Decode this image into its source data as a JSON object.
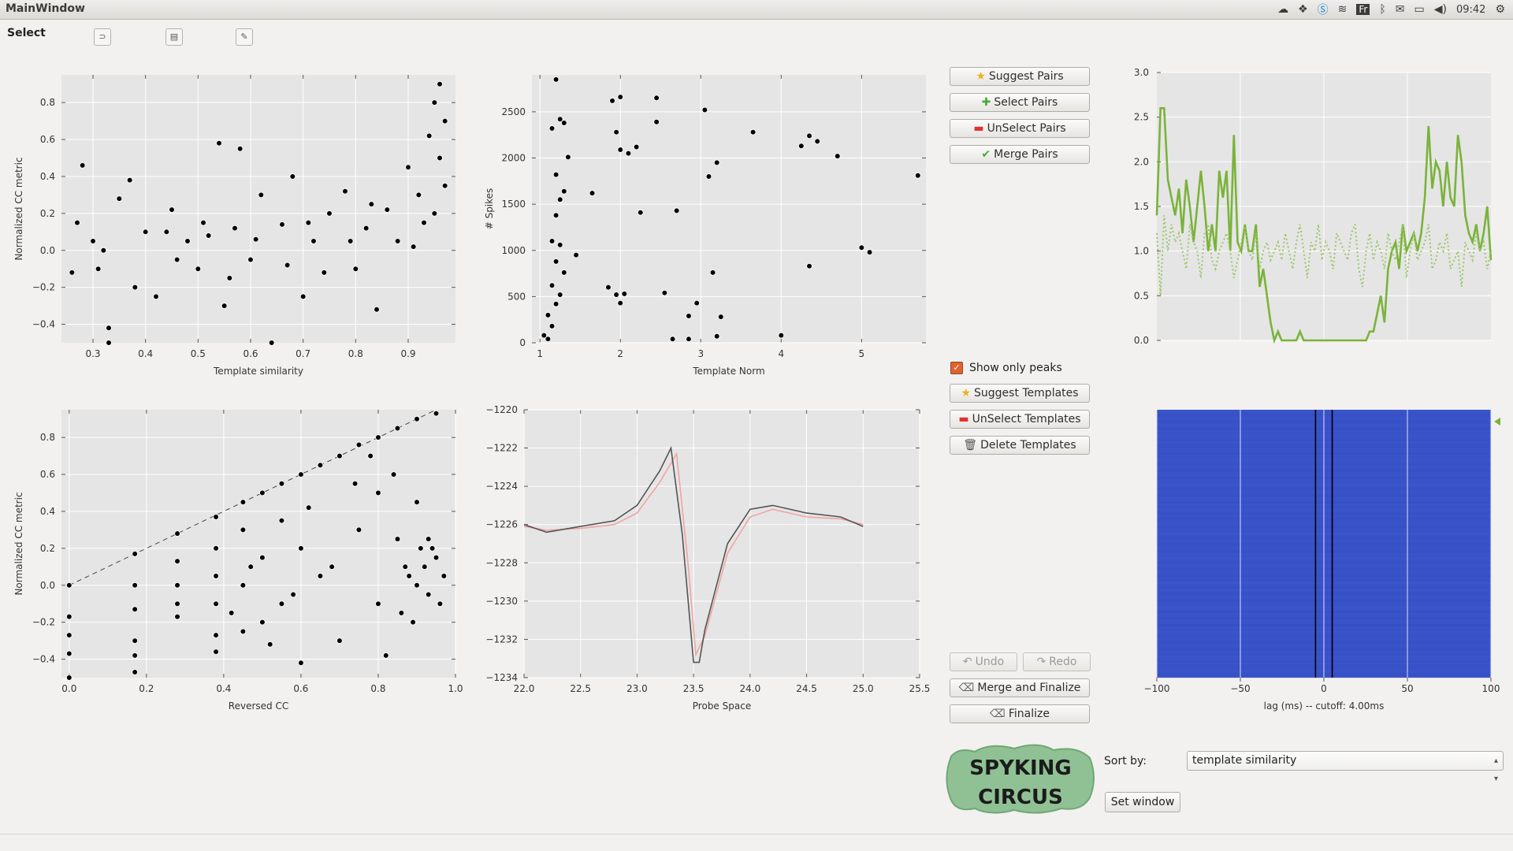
{
  "window": {
    "title": "MainWindow",
    "clock": "09:42",
    "tray_icons": [
      "cloud-icon",
      "dropbox-icon",
      "skype-icon",
      "wifi-icon",
      "keyboard-layout-icon",
      "bluetooth-icon",
      "mail-icon",
      "battery-icon",
      "volume-icon",
      "gear-icon"
    ],
    "keyboard_layout": "Fr"
  },
  "toolbar": {
    "select_label": "Select",
    "tools": [
      "lasso-icon",
      "rectangle-icon",
      "pencil-icon"
    ]
  },
  "buttons": {
    "suggest_pairs": "Suggest Pairs",
    "select_pairs": "Select Pairs",
    "unselect_pairs": "UnSelect Pairs",
    "merge_pairs": "Merge Pairs",
    "show_only_peaks": "Show only peaks",
    "suggest_templates": "Suggest Templates",
    "unselect_templates": "UnSelect Templates",
    "delete_templates": "Delete Templates",
    "undo": "Undo",
    "redo": "Redo",
    "merge_and_finalize": "Merge and Finalize",
    "finalize": "Finalize",
    "set_window": "Set window"
  },
  "sort": {
    "label": "Sort by:",
    "value": "template similarity"
  },
  "logo": {
    "line1": "SPYKING",
    "line2": "CIRCUS"
  },
  "colors": {
    "plot_bg": "#e5e5e5",
    "line_green": "#7ab33a",
    "heatmap": "#3f58cc",
    "accent_orange": "#e2622d"
  },
  "chart_data": [
    {
      "type": "scatter",
      "xlabel": "Template similarity",
      "ylabel": "Normalized CC metric",
      "xticks": [
        "0.3",
        "0.4",
        "0.5",
        "0.6",
        "0.7",
        "0.8",
        "0.9"
      ],
      "yticks": [
        "−0.4",
        "−0.2",
        "0.0",
        "0.2",
        "0.4",
        "0.6",
        "0.8"
      ],
      "xlim": [
        0.24,
        0.99
      ],
      "ylim": [
        -0.5,
        0.95
      ],
      "points": [
        [
          0.27,
          0.15
        ],
        [
          0.28,
          0.46
        ],
        [
          0.3,
          0.05
        ],
        [
          0.31,
          -0.1
        ],
        [
          0.33,
          -0.42
        ],
        [
          0.33,
          -0.5
        ],
        [
          0.35,
          0.28
        ],
        [
          0.37,
          0.38
        ],
        [
          0.38,
          -0.2
        ],
        [
          0.4,
          0.1
        ],
        [
          0.42,
          -0.25
        ],
        [
          0.45,
          0.22
        ],
        [
          0.48,
          0.05
        ],
        [
          0.5,
          -0.1
        ],
        [
          0.52,
          0.08
        ],
        [
          0.54,
          0.58
        ],
        [
          0.55,
          -0.3
        ],
        [
          0.57,
          0.12
        ],
        [
          0.58,
          0.55
        ],
        [
          0.6,
          -0.05
        ],
        [
          0.62,
          0.3
        ],
        [
          0.64,
          -0.5
        ],
        [
          0.66,
          0.14
        ],
        [
          0.68,
          0.4
        ],
        [
          0.7,
          -0.25
        ],
        [
          0.72,
          0.05
        ],
        [
          0.75,
          0.2
        ],
        [
          0.78,
          0.32
        ],
        [
          0.8,
          -0.1
        ],
        [
          0.82,
          0.12
        ],
        [
          0.84,
          -0.32
        ],
        [
          0.86,
          0.22
        ],
        [
          0.88,
          0.05
        ],
        [
          0.9,
          0.45
        ],
        [
          0.92,
          0.3
        ],
        [
          0.94,
          0.62
        ],
        [
          0.95,
          0.8
        ],
        [
          0.96,
          0.9
        ],
        [
          0.97,
          0.7
        ],
        [
          0.96,
          0.5
        ],
        [
          0.93,
          0.15
        ],
        [
          0.91,
          0.02
        ],
        [
          0.97,
          0.35
        ],
        [
          0.95,
          0.2
        ],
        [
          0.26,
          -0.12
        ],
        [
          0.32,
          0.0
        ],
        [
          0.44,
          0.1
        ],
        [
          0.46,
          -0.05
        ],
        [
          0.51,
          0.15
        ],
        [
          0.56,
          -0.15
        ],
        [
          0.61,
          0.06
        ],
        [
          0.67,
          -0.08
        ],
        [
          0.71,
          0.15
        ],
        [
          0.74,
          -0.12
        ],
        [
          0.79,
          0.05
        ],
        [
          0.83,
          0.25
        ]
      ]
    },
    {
      "type": "scatter",
      "xlabel": "Template Norm",
      "ylabel": "# Spikes",
      "xticks": [
        "1",
        "2",
        "3",
        "4",
        "5"
      ],
      "yticks": [
        "0",
        "500",
        "1000",
        "1500",
        "2000",
        "2500"
      ],
      "xlim": [
        0.9,
        5.8
      ],
      "ylim": [
        0,
        2900
      ],
      "points": [
        [
          1.2,
          2850
        ],
        [
          1.15,
          2320
        ],
        [
          1.25,
          2420
        ],
        [
          1.3,
          2380
        ],
        [
          1.35,
          2010
        ],
        [
          1.2,
          1820
        ],
        [
          1.25,
          1550
        ],
        [
          1.3,
          1640
        ],
        [
          1.2,
          1380
        ],
        [
          1.15,
          1100
        ],
        [
          1.25,
          1060
        ],
        [
          1.2,
          880
        ],
        [
          1.3,
          760
        ],
        [
          1.15,
          620
        ],
        [
          1.25,
          520
        ],
        [
          1.2,
          420
        ],
        [
          1.1,
          300
        ],
        [
          1.15,
          180
        ],
        [
          1.05,
          80
        ],
        [
          1.1,
          40
        ],
        [
          1.45,
          950
        ],
        [
          1.65,
          1620
        ],
        [
          1.9,
          2620
        ],
        [
          2.0,
          2660
        ],
        [
          2.0,
          2090
        ],
        [
          2.1,
          2050
        ],
        [
          1.95,
          2280
        ],
        [
          2.2,
          2120
        ],
        [
          2.25,
          1410
        ],
        [
          2.45,
          2650
        ],
        [
          2.45,
          2390
        ],
        [
          2.7,
          1430
        ],
        [
          2.55,
          540
        ],
        [
          1.85,
          600
        ],
        [
          1.95,
          520
        ],
        [
          2.0,
          430
        ],
        [
          2.05,
          530
        ],
        [
          2.65,
          40
        ],
        [
          2.85,
          40
        ],
        [
          2.85,
          290
        ],
        [
          2.95,
          430
        ],
        [
          3.05,
          2520
        ],
        [
          3.1,
          1800
        ],
        [
          3.2,
          1950
        ],
        [
          3.15,
          760
        ],
        [
          3.25,
          280
        ],
        [
          3.2,
          70
        ],
        [
          3.65,
          2280
        ],
        [
          4.0,
          80
        ],
        [
          4.25,
          2130
        ],
        [
          4.35,
          2240
        ],
        [
          4.45,
          2180
        ],
        [
          4.35,
          830
        ],
        [
          4.7,
          2020
        ],
        [
          5.0,
          1030
        ],
        [
          5.1,
          980
        ],
        [
          5.7,
          1810
        ]
      ]
    },
    {
      "type": "line",
      "xticks": [],
      "yticks": [
        "0.0",
        "0.5",
        "1.0",
        "1.5",
        "2.0",
        "2.5",
        "3.0"
      ],
      "ylim": [
        0,
        3.0
      ],
      "series": [
        {
          "style": "solid",
          "color": "#7ab33a",
          "values": [
            1.4,
            2.6,
            2.6,
            1.8,
            1.6,
            1.4,
            1.7,
            1.2,
            1.8,
            1.5,
            1.1,
            1.5,
            1.9,
            1.5,
            1.0,
            1.3,
            1.0,
            1.9,
            1.6,
            1.9,
            1.0,
            2.3,
            1.1,
            1.0,
            1.3,
            1.0,
            1.0,
            1.3,
            0.6,
            0.8,
            0.5,
            0.2,
            0.0,
            0.1,
            0.0,
            0.0,
            0.0,
            0.0,
            0.0,
            0.1,
            0.0,
            0.0,
            0.0,
            0.0,
            0.0,
            0.0,
            0.0,
            0.0,
            0.0,
            0.0,
            0.0,
            0.0,
            0.0,
            0.0,
            0.0,
            0.0,
            0.0,
            0.0,
            0.1,
            0.1,
            0.3,
            0.5,
            0.2,
            0.8,
            1.0,
            1.1,
            0.8,
            1.3,
            1.0,
            1.1,
            1.2,
            1.0,
            1.2,
            1.6,
            2.4,
            1.7,
            2.0,
            1.9,
            1.5,
            2.0,
            1.6,
            1.5,
            2.3,
            2.0,
            1.4,
            1.2,
            1.1,
            1.3,
            1.0,
            1.2,
            1.5,
            0.9
          ]
        },
        {
          "style": "dotted",
          "color": "#9dc66a",
          "values": [
            1.2,
            0.5,
            1.4,
            1.0,
            1.3,
            1.1,
            1.2,
            1.0,
            0.8,
            1.3,
            1.1,
            1.0,
            0.7,
            1.2,
            1.3,
            0.9,
            0.8,
            1.0,
            1.1,
            1.2,
            1.0,
            0.7,
            0.9,
            1.1,
            1.3,
            1.0,
            0.9,
            1.2,
            0.8,
            1.0,
            1.1,
            0.9,
            1.0,
            1.1,
            0.9,
            1.2,
            1.0,
            0.8,
            1.1,
            1.3,
            1.0,
            0.7,
            1.1,
            1.0,
            1.3,
            0.9,
            1.1,
            1.0,
            0.8,
            1.2,
            1.1,
            1.0,
            0.9,
            1.2,
            1.3,
            0.8,
            0.6,
            1.0,
            1.2,
            0.9,
            1.1,
            1.0,
            0.8,
            1.2,
            1.0,
            0.9,
            1.1,
            1.3,
            0.7,
            1.0,
            1.2,
            0.9,
            1.0,
            1.1,
            1.3,
            0.8,
            0.9,
            1.1,
            1.0,
            1.2,
            0.8,
            0.9,
            1.0,
            0.6,
            1.1,
            1.0,
            0.9,
            1.2,
            1.0,
            1.1,
            0.8,
            1.0
          ]
        }
      ]
    },
    {
      "type": "scatter",
      "xlabel": "Reversed CC",
      "ylabel": "Normalized CC metric",
      "xticks": [
        "0.0",
        "0.2",
        "0.4",
        "0.6",
        "0.8",
        "1.0"
      ],
      "yticks": [
        "−0.4",
        "−0.2",
        "0.0",
        "0.2",
        "0.4",
        "0.6",
        "0.8"
      ],
      "xlim": [
        -0.02,
        1.0
      ],
      "ylim": [
        -0.5,
        0.95
      ],
      "diagonal": true,
      "points": [
        [
          0.0,
          0.0
        ],
        [
          0.0,
          -0.17
        ],
        [
          0.0,
          -0.27
        ],
        [
          0.0,
          -0.37
        ],
        [
          0.0,
          -0.5
        ],
        [
          0.17,
          0.17
        ],
        [
          0.17,
          0.0
        ],
        [
          0.17,
          -0.13
        ],
        [
          0.17,
          -0.3
        ],
        [
          0.17,
          -0.38
        ],
        [
          0.17,
          -0.47
        ],
        [
          0.28,
          0.28
        ],
        [
          0.28,
          0.13
        ],
        [
          0.28,
          0.0
        ],
        [
          0.28,
          -0.1
        ],
        [
          0.28,
          -0.17
        ],
        [
          0.38,
          0.37
        ],
        [
          0.38,
          0.2
        ],
        [
          0.38,
          0.05
        ],
        [
          0.38,
          -0.1
        ],
        [
          0.38,
          -0.27
        ],
        [
          0.38,
          -0.36
        ],
        [
          0.45,
          0.45
        ],
        [
          0.45,
          0.3
        ],
        [
          0.45,
          0.0
        ],
        [
          0.45,
          -0.25
        ],
        [
          0.5,
          0.5
        ],
        [
          0.5,
          0.15
        ],
        [
          0.5,
          -0.2
        ],
        [
          0.55,
          0.55
        ],
        [
          0.55,
          0.35
        ],
        [
          0.55,
          -0.1
        ],
        [
          0.6,
          0.6
        ],
        [
          0.6,
          0.2
        ],
        [
          0.6,
          -0.42
        ],
        [
          0.65,
          0.65
        ],
        [
          0.65,
          0.05
        ],
        [
          0.7,
          0.7
        ],
        [
          0.7,
          -0.3
        ],
        [
          0.75,
          0.76
        ],
        [
          0.75,
          0.3
        ],
        [
          0.8,
          0.8
        ],
        [
          0.8,
          0.5
        ],
        [
          0.8,
          -0.1
        ],
        [
          0.85,
          0.85
        ],
        [
          0.85,
          0.25
        ],
        [
          0.9,
          0.9
        ],
        [
          0.9,
          0.0
        ],
        [
          0.92,
          0.1
        ],
        [
          0.93,
          -0.05
        ],
        [
          0.94,
          0.2
        ],
        [
          0.88,
          0.05
        ],
        [
          0.86,
          -0.15
        ],
        [
          0.95,
          0.93
        ],
        [
          0.9,
          0.45
        ],
        [
          0.84,
          0.6
        ],
        [
          0.82,
          -0.38
        ],
        [
          0.78,
          0.7
        ],
        [
          0.74,
          0.55
        ],
        [
          0.68,
          0.1
        ],
        [
          0.62,
          0.42
        ],
        [
          0.58,
          -0.05
        ],
        [
          0.52,
          -0.32
        ],
        [
          0.47,
          0.1
        ],
        [
          0.42,
          -0.15
        ],
        [
          0.97,
          0.05
        ],
        [
          0.96,
          -0.1
        ],
        [
          0.91,
          0.2
        ],
        [
          0.89,
          -0.2
        ],
        [
          0.87,
          0.1
        ],
        [
          0.95,
          0.15
        ],
        [
          0.93,
          0.25
        ]
      ]
    },
    {
      "type": "line",
      "xlabel": "Probe Space",
      "xticks": [
        "22.0",
        "22.5",
        "23.0",
        "23.5",
        "24.0",
        "24.5",
        "25.0",
        "25.5"
      ],
      "yticks": [
        "−1220",
        "−1222",
        "−1224",
        "−1226",
        "−1228",
        "−1230",
        "−1232",
        "−1234"
      ],
      "xlim": [
        22.0,
        25.5
      ],
      "ylim": [
        -1234,
        -1220
      ],
      "series": [
        {
          "color": "#555555",
          "x": [
            22.0,
            22.2,
            22.5,
            22.8,
            23.0,
            23.2,
            23.3,
            23.4,
            23.5,
            23.55,
            23.6,
            23.8,
            24.0,
            24.2,
            24.5,
            24.8,
            25.0
          ],
          "values": [
            -1226.0,
            -1226.4,
            -1226.1,
            -1225.8,
            -1225.0,
            -1223.2,
            -1222.0,
            -1226.5,
            -1233.2,
            -1233.2,
            -1231.5,
            -1227.0,
            -1225.2,
            -1225.0,
            -1225.4,
            -1225.6,
            -1226.1
          ]
        },
        {
          "color": "#f2a3a3",
          "x": [
            22.0,
            22.2,
            22.5,
            22.8,
            23.0,
            23.2,
            23.35,
            23.45,
            23.52,
            23.6,
            23.8,
            24.0,
            24.2,
            24.5,
            24.8,
            25.0
          ],
          "values": [
            -1226.1,
            -1226.3,
            -1226.2,
            -1226.0,
            -1225.4,
            -1223.8,
            -1222.3,
            -1228.0,
            -1232.8,
            -1231.8,
            -1227.5,
            -1225.6,
            -1225.2,
            -1225.6,
            -1225.7,
            -1226.0
          ]
        }
      ]
    },
    {
      "type": "heatmap",
      "xlabel": "lag (ms) -- cutoff: 4.00ms",
      "xticks": [
        "−100",
        "−50",
        "0",
        "50",
        "100"
      ],
      "xlim": [
        -100,
        100
      ]
    }
  ]
}
